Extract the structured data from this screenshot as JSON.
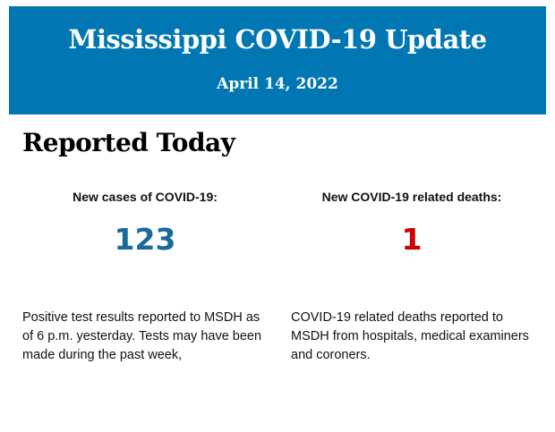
{
  "header": {
    "title": "Mississippi COVID-19 Update",
    "date": "April 14, 2022",
    "background": "#0077b3"
  },
  "section": {
    "heading": "Reported Today"
  },
  "cases": {
    "label": "New cases of COVID-19:",
    "value": "123",
    "color": "#19699b",
    "description": "Positive test results reported to MSDH as of 6 p.m. yesterday. Tests may have been made during the past week,"
  },
  "deaths": {
    "label": "New COVID-19 related deaths:",
    "value": "1",
    "color": "#cc0000",
    "description": "COVID-19 related deaths reported to MSDH from hospitals, medical examiners and coroners."
  }
}
